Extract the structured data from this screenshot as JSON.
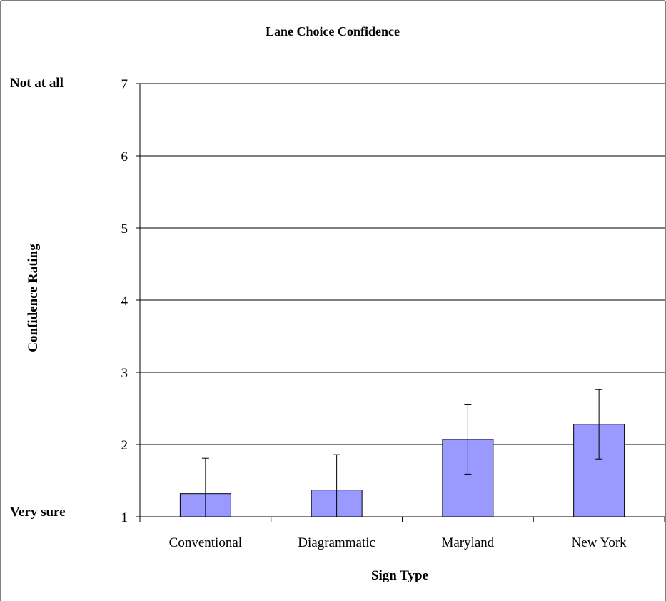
{
  "chart_data": {
    "type": "bar",
    "title": "Lane Choice Confidence",
    "xlabel": "Sign Type",
    "ylabel": "Confidence Rating",
    "categories": [
      "Conventional",
      "Diagrammatic",
      "Maryland",
      "New York"
    ],
    "values": [
      1.32,
      1.37,
      2.07,
      2.28
    ],
    "error_bars": [
      0.49,
      0.49,
      0.48,
      0.48
    ],
    "ylim": [
      1,
      7
    ],
    "yticks": [
      "1",
      "2",
      "3",
      "4",
      "5",
      "6",
      "7"
    ],
    "y_anchor_labels": {
      "top": "Not at all",
      "bottom": "Very sure"
    },
    "grid": true,
    "colors": {
      "bar": "#9999ff",
      "bar_border": "#000000",
      "grid": "#000000"
    }
  }
}
